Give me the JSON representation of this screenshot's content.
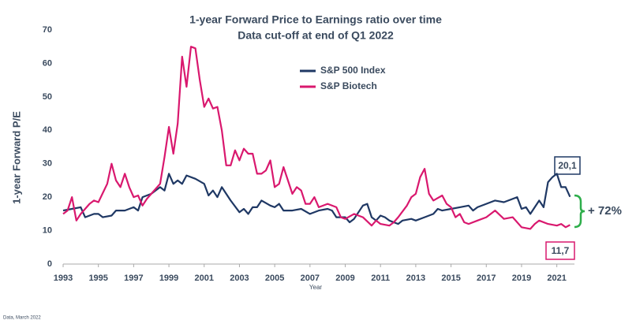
{
  "chart_data": {
    "type": "line",
    "title": "1-year Forward Price to Earnings ratio over time",
    "subtitle": "Data cut-off at end of Q1 2022",
    "x_label": "Year",
    "y_label": "1-year Forward P/E",
    "source": "Data, March 2022",
    "legend": "upper center",
    "xlim": [
      1993,
      2022
    ],
    "xticks": [
      1993,
      1995,
      1997,
      1999,
      2001,
      2003,
      2005,
      2007,
      2009,
      2011,
      2013,
      2015,
      2017,
      2019,
      2021
    ],
    "ylim": [
      0,
      70
    ],
    "yticks": [
      0,
      10,
      20,
      30,
      40,
      50,
      60,
      70
    ],
    "series": [
      {
        "name": "S&P 500 Index",
        "color": "#1f3864",
        "x": [
          1993,
          1993.5,
          1994,
          1994.25,
          1994.75,
          1995,
          1995.25,
          1995.75,
          1996,
          1996.5,
          1997,
          1997.25,
          1997.5,
          1998,
          1998.5,
          1998.75,
          1999,
          1999.25,
          1999.5,
          1999.75,
          2000,
          2000.5,
          2001,
          2001.25,
          2001.5,
          2001.75,
          2002,
          2002.5,
          2003,
          2003.25,
          2003.5,
          2003.75,
          2004,
          2004.25,
          2004.75,
          2005,
          2005.25,
          2005.5,
          2006,
          2006.5,
          2007,
          2007.5,
          2008,
          2008.25,
          2008.5,
          2009,
          2009.25,
          2009.5,
          2010,
          2010.25,
          2010.5,
          2010.75,
          2011,
          2011.25,
          2011.5,
          2012,
          2012.25,
          2012.75,
          2013,
          2013.5,
          2014,
          2014.25,
          2014.5,
          2015,
          2015.5,
          2016,
          2016.25,
          2016.5,
          2017,
          2017.5,
          2018,
          2018.25,
          2018.75,
          2019,
          2019.25,
          2019.5,
          2019.75,
          2020,
          2020.25,
          2020.5,
          2020.75,
          2021,
          2021.25,
          2021.5,
          2021.75
        ],
        "values": [
          16,
          16.5,
          17,
          14,
          15,
          15,
          14,
          14.5,
          16,
          16,
          17,
          16,
          20,
          21,
          23,
          22,
          27,
          24,
          25,
          24,
          26.5,
          25.5,
          24,
          20.5,
          22,
          20,
          23,
          19,
          15.5,
          16.5,
          15,
          17,
          17,
          19,
          17.5,
          17,
          18,
          16,
          16,
          16.5,
          15,
          16,
          16.5,
          16,
          14,
          14,
          12.5,
          13.5,
          17.5,
          18,
          14,
          13,
          14.5,
          14,
          13,
          12,
          13,
          13.5,
          13,
          14,
          15,
          16.5,
          16,
          16.5,
          17,
          17.5,
          16,
          17,
          18,
          19,
          18.5,
          19,
          20,
          16.5,
          17,
          15,
          17,
          19,
          17,
          24.5,
          26,
          27,
          23,
          23,
          20.1
        ]
      },
      {
        "name": "S&P Biotech",
        "color": "#d9186e",
        "x": [
          1993,
          1993.25,
          1993.5,
          1993.75,
          1994,
          1994.5,
          1994.75,
          1995,
          1995.5,
          1995.75,
          1996,
          1996.25,
          1996.5,
          1996.75,
          1997,
          1997.25,
          1997.5,
          1997.75,
          1998,
          1998.5,
          1998.75,
          1999,
          1999.25,
          1999.5,
          1999.75,
          2000,
          2000.25,
          2000.5,
          2000.75,
          2001,
          2001.25,
          2001.5,
          2001.75,
          2002,
          2002.25,
          2002.5,
          2002.75,
          2003,
          2003.25,
          2003.5,
          2003.75,
          2004,
          2004.25,
          2004.5,
          2004.75,
          2005,
          2005.25,
          2005.5,
          2005.75,
          2006,
          2006.25,
          2006.5,
          2006.75,
          2007,
          2007.25,
          2007.5,
          2008,
          2008.5,
          2008.75,
          2009,
          2009.5,
          2010,
          2010.5,
          2010.75,
          2011,
          2011.5,
          2011.75,
          2012,
          2012.5,
          2012.75,
          2013,
          2013.25,
          2013.5,
          2013.75,
          2014,
          2014.5,
          2014.75,
          2015,
          2015.25,
          2015.5,
          2015.75,
          2016,
          2016.5,
          2017,
          2017.5,
          2018,
          2018.5,
          2019,
          2019.5,
          2019.75,
          2020,
          2020.5,
          2021,
          2021.25,
          2021.5,
          2021.75
        ],
        "values": [
          15,
          16,
          20,
          13,
          15,
          18,
          19,
          18.5,
          24,
          30,
          25,
          23,
          27,
          23,
          20,
          20.5,
          17.5,
          19.5,
          21,
          24,
          32,
          41,
          33,
          42,
          62,
          53,
          65,
          64.5,
          55,
          47,
          49.5,
          46.5,
          47,
          40,
          29.5,
          29.5,
          34,
          31,
          34.5,
          33,
          33,
          27,
          27,
          28,
          31,
          23,
          24,
          29,
          25,
          21,
          23,
          22,
          18,
          18,
          20,
          17,
          18,
          17,
          14,
          13.5,
          15,
          14,
          11.5,
          13,
          12,
          11.5,
          12.5,
          14,
          17.5,
          20,
          21,
          26,
          28.5,
          21,
          19,
          20.5,
          18,
          17,
          14,
          15,
          12.5,
          12,
          13,
          14,
          16,
          13.5,
          14,
          11,
          10.5,
          12,
          13,
          12,
          11.5,
          12,
          11,
          11.7
        ]
      }
    ],
    "annotations": [
      "20,1",
      "11,7",
      "+ 72%"
    ]
  }
}
